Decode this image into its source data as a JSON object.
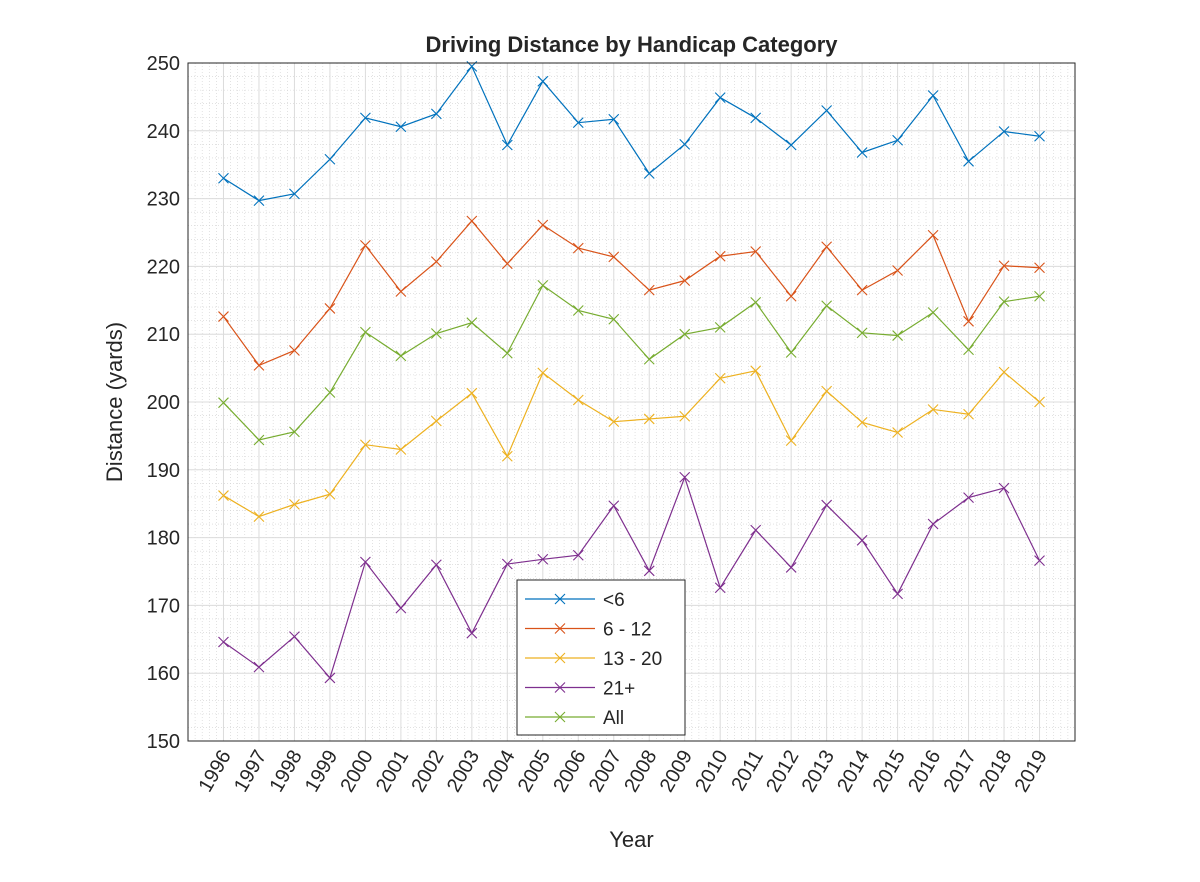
{
  "chart_data": {
    "type": "line",
    "title": "Driving Distance by Handicap Category",
    "xlabel": "Year",
    "ylabel": "Distance (yards)",
    "xlim": [
      1995,
      2020
    ],
    "ylim": [
      150,
      250
    ],
    "yticks": [
      150,
      160,
      170,
      180,
      190,
      200,
      210,
      220,
      230,
      240,
      250
    ],
    "grid": "major and minor",
    "legend_placement": "bottom-center",
    "marker": "x",
    "x": [
      1996,
      1997,
      1998,
      1999,
      2000,
      2001,
      2002,
      2003,
      2004,
      2005,
      2006,
      2007,
      2008,
      2009,
      2010,
      2011,
      2012,
      2013,
      2014,
      2015,
      2016,
      2017,
      2018,
      2019
    ],
    "series": [
      {
        "name": "<6",
        "color": "#0072BD",
        "values": [
          233.0,
          229.7,
          230.7,
          235.8,
          241.9,
          240.6,
          242.5,
          249.5,
          237.9,
          247.3,
          241.2,
          241.7,
          233.7,
          238.0,
          244.9,
          241.9,
          237.9,
          243.0,
          236.8,
          238.6,
          245.2,
          235.5,
          239.9,
          239.2
        ]
      },
      {
        "name": "6 - 12",
        "color": "#D95319",
        "values": [
          212.6,
          205.4,
          207.6,
          213.8,
          223.1,
          216.3,
          220.7,
          226.7,
          220.4,
          226.1,
          222.7,
          221.4,
          216.5,
          217.9,
          221.5,
          222.2,
          215.6,
          222.9,
          216.5,
          219.4,
          224.6,
          211.9,
          220.1,
          219.8
        ]
      },
      {
        "name": "13 - 20",
        "color": "#EDB120",
        "values": [
          186.2,
          183.1,
          184.9,
          186.4,
          193.7,
          193.0,
          197.2,
          201.3,
          192.0,
          204.3,
          200.3,
          197.1,
          197.5,
          197.9,
          203.5,
          204.6,
          194.3,
          201.6,
          197.0,
          195.5,
          198.9,
          198.2,
          204.4,
          200.0
        ]
      },
      {
        "name": "21+",
        "color": "#7E2F8E",
        "values": [
          164.6,
          160.9,
          165.4,
          159.3,
          176.4,
          169.6,
          176.0,
          165.9,
          176.1,
          176.8,
          177.4,
          184.7,
          175.1,
          188.9,
          172.6,
          181.1,
          175.6,
          184.8,
          179.6,
          171.7,
          182.0,
          185.9,
          187.3,
          176.6
        ]
      },
      {
        "name": "All",
        "color": "#77AC30",
        "values": [
          199.9,
          194.4,
          195.6,
          201.4,
          210.3,
          206.8,
          210.1,
          211.7,
          207.2,
          217.2,
          213.5,
          212.2,
          206.3,
          210.0,
          211.0,
          214.7,
          207.3,
          214.2,
          210.2,
          209.8,
          213.2,
          207.7,
          214.8,
          215.6
        ]
      }
    ]
  }
}
